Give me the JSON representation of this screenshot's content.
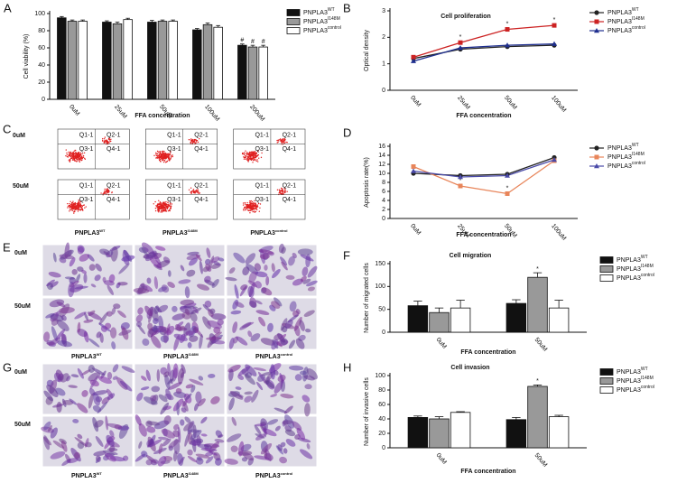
{
  "chart_data": [
    {
      "panel": "A",
      "type": "bar",
      "ylabel": "Cell viability (%)",
      "xlabel": "FFA concentration",
      "categories": [
        "0uM",
        "25uM",
        "50uM",
        "100uM",
        "200uM"
      ],
      "ylim": [
        0,
        100
      ],
      "yticks": [
        0,
        20,
        40,
        60,
        80,
        100
      ],
      "legend": "right",
      "series": [
        {
          "name": "PNPLA3",
          "name_superscript": "WT",
          "color": "#111111",
          "values": [
            95,
            90,
            90,
            81,
            63
          ],
          "errors": [
            1.5,
            1.5,
            2,
            1.5,
            1.5
          ],
          "annotations": [
            null,
            null,
            null,
            null,
            "#"
          ]
        },
        {
          "name": "PNPLA3",
          "name_superscript": "I148M",
          "color": "#999999",
          "values": [
            91,
            88,
            91,
            87,
            61
          ],
          "errors": [
            1.5,
            2,
            1.5,
            2,
            2
          ],
          "annotations": [
            null,
            null,
            null,
            null,
            "#"
          ]
        },
        {
          "name": "PNPLA3",
          "name_superscript": "control",
          "color": "#ffffff",
          "values": [
            91,
            93,
            91,
            84,
            61
          ],
          "errors": [
            1.5,
            1.5,
            1.5,
            2,
            2
          ],
          "annotations": [
            null,
            null,
            null,
            null,
            "#"
          ]
        }
      ]
    },
    {
      "panel": "B",
      "type": "line",
      "title": "Cell proliferation",
      "ylabel": "Optical density",
      "xlabel": "FFA concentration",
      "categories": [
        "0uM",
        "25uM",
        "50uM",
        "100uM"
      ],
      "ylim": [
        0,
        3
      ],
      "yticks": [
        0,
        1,
        2,
        3
      ],
      "legend": "right",
      "series": [
        {
          "name": "PNPLA3",
          "name_superscript": "WT",
          "color": "#222222",
          "marker": "circle",
          "values": [
            1.2,
            1.55,
            1.65,
            1.7
          ],
          "annotations": [
            null,
            null,
            null,
            null
          ]
        },
        {
          "name": "PNPLA3",
          "name_superscript": "I148M",
          "color": "#cc2222",
          "marker": "square",
          "values": [
            1.25,
            1.8,
            2.3,
            2.45
          ],
          "annotations": [
            null,
            "*",
            "*",
            "*"
          ]
        },
        {
          "name": "PNPLA3",
          "name_superscript": "control",
          "color": "#1f2f8f",
          "marker": "triangle",
          "values": [
            1.1,
            1.6,
            1.7,
            1.75
          ],
          "annotations": [
            null,
            null,
            null,
            null
          ]
        }
      ]
    },
    {
      "panel": "D",
      "type": "line",
      "ylabel": "Apoptosis rate(%)",
      "xlabel": "FFA concentration",
      "categories": [
        "0uM",
        "25uM",
        "50uM",
        "100uM"
      ],
      "ylim": [
        0,
        16
      ],
      "yticks": [
        0,
        2,
        4,
        6,
        8,
        10,
        12,
        14,
        16
      ],
      "legend": "right",
      "series": [
        {
          "name": "PNPLA3",
          "name_superscript": "WT",
          "color": "#222222",
          "marker": "circle",
          "values": [
            10,
            9.5,
            9.8,
            13.5
          ],
          "annotations": [
            null,
            null,
            null,
            null
          ]
        },
        {
          "name": "PNPLA3",
          "name_superscript": "I148M",
          "color": "#e8855a",
          "marker": "square",
          "values": [
            11.5,
            7.2,
            5.5,
            12.8
          ],
          "annotations": [
            null,
            "*",
            "*",
            null
          ]
        },
        {
          "name": "PNPLA3",
          "name_superscript": "control",
          "color": "#4a4aa8",
          "marker": "triangle",
          "values": [
            10.5,
            9.2,
            9.5,
            13
          ],
          "annotations": [
            null,
            null,
            null,
            null
          ]
        }
      ]
    },
    {
      "panel": "F",
      "type": "bar",
      "title": "Cell migration",
      "ylabel": "Number of migrated cells",
      "xlabel": "FFA concentration",
      "categories": [
        "0uM",
        "50uM"
      ],
      "ylim": [
        0,
        150
      ],
      "yticks": [
        0,
        50,
        100,
        150
      ],
      "legend": "right",
      "series": [
        {
          "name": "PNPLA3",
          "name_superscript": "WT",
          "color": "#111111",
          "values": [
            58,
            63
          ],
          "errors": [
            10,
            8
          ],
          "annotations": [
            null,
            null
          ]
        },
        {
          "name": "PNPLA3",
          "name_superscript": "I148M",
          "color": "#999999",
          "values": [
            43,
            120
          ],
          "errors": [
            10,
            10
          ],
          "annotations": [
            null,
            "*"
          ]
        },
        {
          "name": "PNPLA3",
          "name_superscript": "control",
          "color": "#ffffff",
          "values": [
            53,
            53
          ],
          "errors": [
            17,
            17
          ],
          "annotations": [
            null,
            null
          ]
        }
      ]
    },
    {
      "panel": "H",
      "type": "bar",
      "title": "Cell invasion",
      "ylabel": "Number of invasive cells",
      "xlabel": "FFA concentration",
      "categories": [
        "0uM",
        "50uM"
      ],
      "ylim": [
        0,
        100
      ],
      "yticks": [
        0,
        20,
        40,
        60,
        80,
        100
      ],
      "legend": "right",
      "series": [
        {
          "name": "PNPLA3",
          "name_superscript": "WT",
          "color": "#111111",
          "values": [
            42,
            39
          ],
          "errors": [
            2,
            3
          ],
          "annotations": [
            null,
            null
          ]
        },
        {
          "name": "PNPLA3",
          "name_superscript": "I148M",
          "color": "#999999",
          "values": [
            40,
            85
          ],
          "errors": [
            3,
            2
          ],
          "annotations": [
            null,
            "*"
          ]
        },
        {
          "name": "PNPLA3",
          "name_superscript": "control",
          "color": "#ffffff",
          "values": [
            49,
            43
          ],
          "errors": [
            1,
            2
          ],
          "annotations": [
            null,
            null
          ]
        }
      ]
    }
  ],
  "image_panels": [
    {
      "panel": "C",
      "kind": "flow",
      "row_labels": [
        "0uM",
        "50uM"
      ],
      "column_labels": [
        {
          "text": "PNPLA3",
          "superscript": "WT"
        },
        {
          "text": "PNPLA3",
          "superscript": "I148M"
        },
        {
          "text": "PNPLA3",
          "superscript": "control"
        }
      ],
      "quadrant_labels": [
        "Q1-1",
        "Q2-1",
        "Q3-1",
        "Q4-1"
      ]
    },
    {
      "panel": "E",
      "kind": "micrograph",
      "row_labels": [
        "0uM",
        "50uM"
      ],
      "column_labels": [
        {
          "text": "PNPLA3",
          "superscript": "WT"
        },
        {
          "text": "PNPLA3",
          "superscript": "I148M"
        },
        {
          "text": "PNPLA3",
          "superscript": "control"
        }
      ]
    },
    {
      "panel": "G",
      "kind": "micrograph",
      "row_labels": [
        "0uM",
        "50uM"
      ],
      "column_labels": [
        {
          "text": "PNPLA3",
          "superscript": "WT"
        },
        {
          "text": "PNPLA3",
          "superscript": "I148M"
        },
        {
          "text": "PNPLA3",
          "superscript": "control"
        }
      ]
    }
  ]
}
